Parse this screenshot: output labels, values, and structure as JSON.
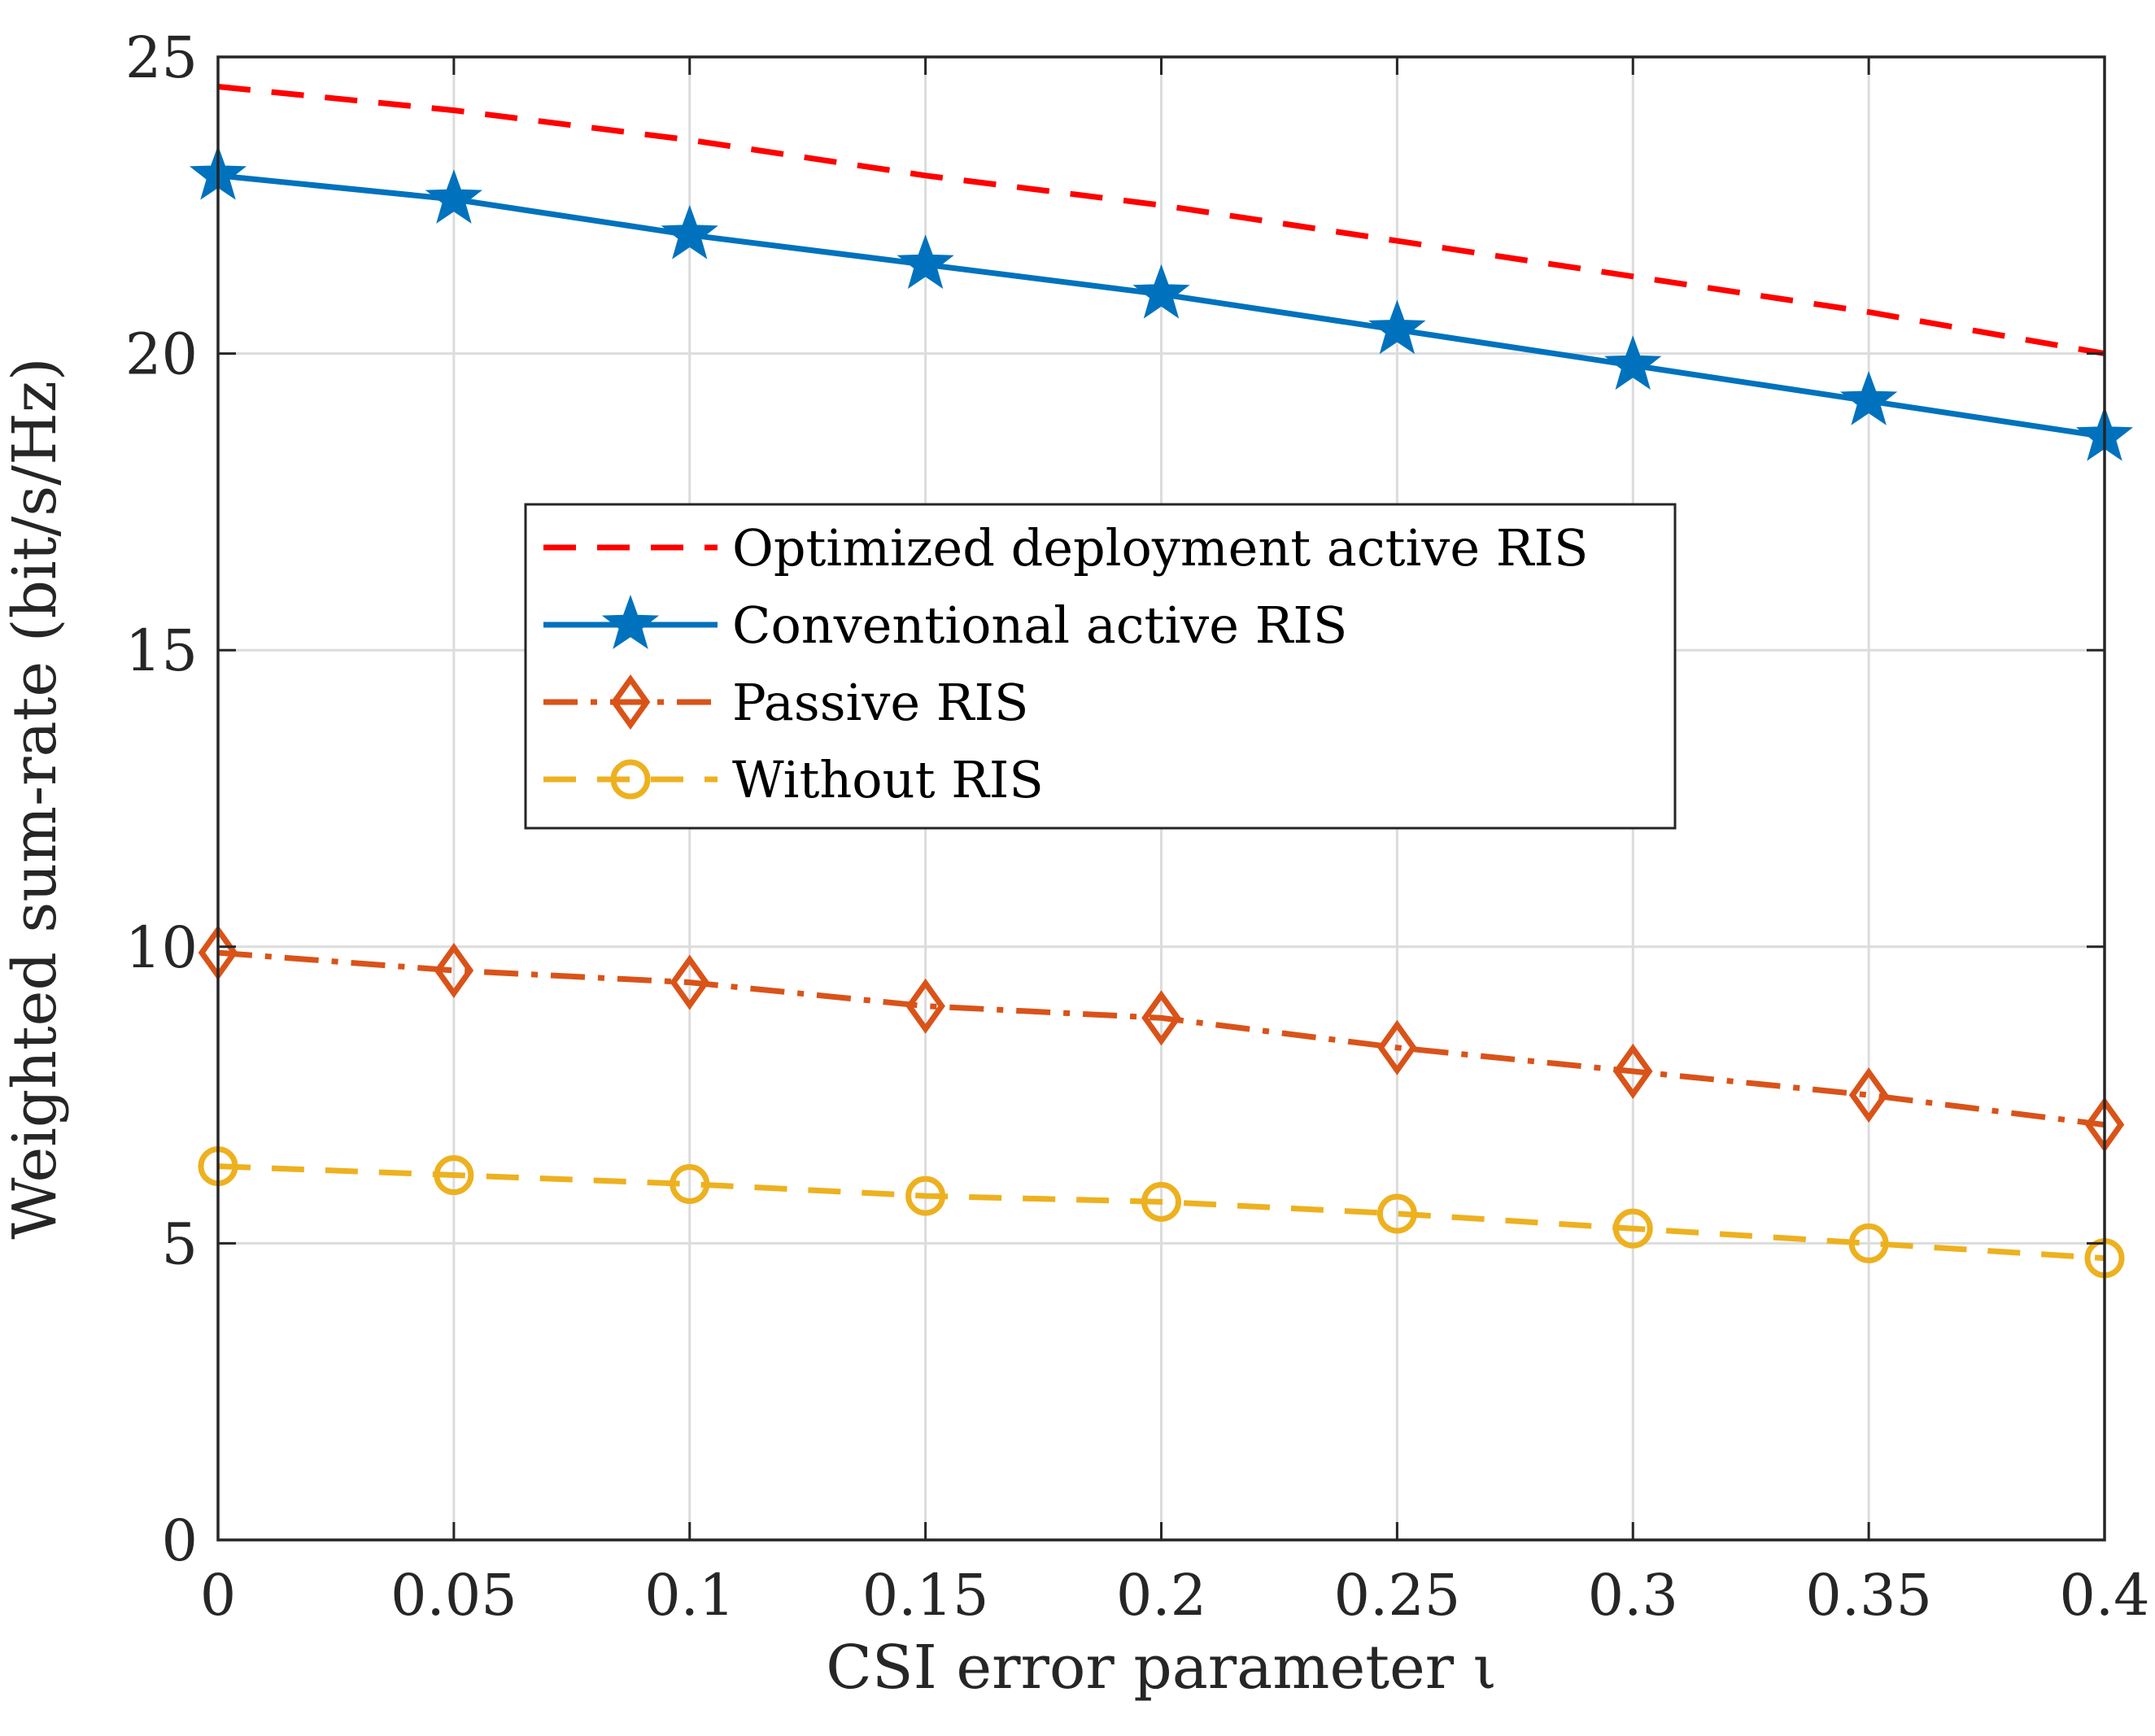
{
  "chart_data": {
    "type": "line",
    "title": "",
    "xlabel": "CSI error parameter ι",
    "ylabel": "Weighted sum-rate (bit/s/Hz)",
    "xlim": [
      0,
      0.4
    ],
    "ylim": [
      0,
      25
    ],
    "xticks": [
      0,
      0.05,
      0.1,
      0.15,
      0.2,
      0.25,
      0.3,
      0.35,
      0.4
    ],
    "xtick_labels": [
      "0",
      "0.05",
      "0.1",
      "0.15",
      "0.2",
      "0.25",
      "0.3",
      "0.35",
      "0.4"
    ],
    "yticks": [
      0,
      5,
      10,
      15,
      20,
      25
    ],
    "ytick_labels": [
      "0",
      "5",
      "10",
      "15",
      "20",
      "25"
    ],
    "grid": true,
    "legend_position": "center-left",
    "x": [
      0,
      0.05,
      0.1,
      0.15,
      0.2,
      0.25,
      0.3,
      0.35,
      0.4
    ],
    "series": [
      {
        "name": "Optimized deployment active RIS",
        "values": [
          24.5,
          24.1,
          23.6,
          23.0,
          22.5,
          21.9,
          21.3,
          20.7,
          20.0
        ],
        "color": "#ff0000",
        "line_style": "dashed",
        "marker": "none"
      },
      {
        "name": "Conventional active RIS",
        "values": [
          23.0,
          22.6,
          22.0,
          21.5,
          21.0,
          20.4,
          19.8,
          19.2,
          18.6
        ],
        "color": "#0072bd",
        "line_style": "solid",
        "marker": "star"
      },
      {
        "name": "Passive RIS",
        "values": [
          9.9,
          9.6,
          9.4,
          9.0,
          8.8,
          8.3,
          7.9,
          7.5,
          7.0
        ],
        "color": "#d95319",
        "line_style": "dashdot",
        "marker": "diamond"
      },
      {
        "name": "Without RIS",
        "values": [
          6.3,
          6.15,
          6.0,
          5.8,
          5.7,
          5.5,
          5.25,
          5.0,
          4.75
        ],
        "color": "#edb120",
        "line_style": "dashed",
        "marker": "circle"
      }
    ]
  }
}
